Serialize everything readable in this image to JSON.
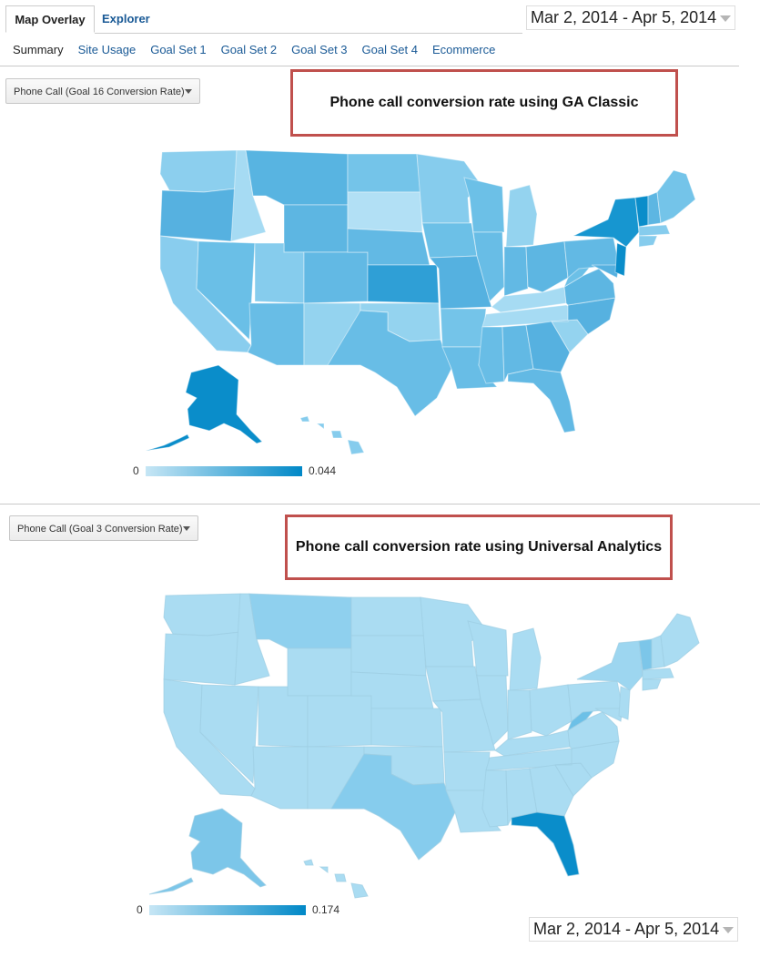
{
  "tabs": {
    "active": "Map Overlay",
    "inactive": "Explorer"
  },
  "date_range_top": "Mar 2, 2014 - Apr 5, 2014",
  "date_range_bottom": "Mar 2, 2014 - Apr 5, 2014",
  "subtabs": [
    "Summary",
    "Site Usage",
    "Goal Set 1",
    "Goal Set 2",
    "Goal Set 3",
    "Goal Set 4",
    "Ecommerce"
  ],
  "panel_top": {
    "metric_dropdown": "Phone Call (Goal 16 Conversion Rate)",
    "callout": "Phone call conversion rate using GA Classic",
    "legend_min": "0",
    "legend_max": "0.044",
    "colors": {
      "low": "#a9dcf2",
      "mid": "#5db4e0",
      "high": "#0a8dca"
    }
  },
  "panel_bottom": {
    "metric_dropdown": "Phone Call (Goal 3 Conversion Rate)",
    "callout": "Phone call conversion rate using Universal Analytics",
    "legend_min": "0",
    "legend_max": "0.174",
    "colors": {
      "low": "#aadcf2",
      "mid": "#7cc6e9",
      "high": "#0a8dca"
    }
  }
}
